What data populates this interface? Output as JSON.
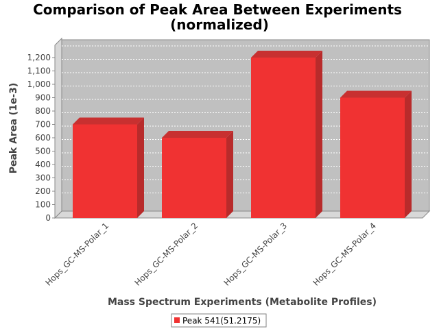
{
  "chart_data": {
    "type": "bar",
    "title": "Comparison of Peak Area Between Experiments",
    "subtitle": "(normalized)",
    "xlabel": "Mass Spectrum Experiments (Metabolite Profiles)",
    "ylabel": "Peak Area (1e-3)",
    "categories": [
      "Hops_GC-MS-Polar_1",
      "Hops_GC-MS-Polar_2",
      "Hops_GC-MS-Polar_3",
      "Hops_GC-MS-Polar_4"
    ],
    "series": [
      {
        "name": "Peak 541(51.2175)",
        "values": [
          700,
          600,
          1200,
          900
        ],
        "color": "#f03232"
      }
    ],
    "ylim": [
      0,
      1200
    ],
    "yticks": [
      0,
      100,
      200,
      300,
      400,
      500,
      600,
      700,
      800,
      900,
      1000,
      1100,
      1200
    ],
    "ytick_labels": [
      "0",
      "100",
      "200",
      "300",
      "400",
      "500",
      "600",
      "700",
      "800",
      "900",
      "1,000",
      "1,100",
      "1,200"
    ],
    "grid": true,
    "three_d": true,
    "legend_position": "bottom",
    "colors": {
      "plot_background": "#c0c0c0",
      "plot_wall": "#d8d8d8",
      "bar_side": "#b82b2b",
      "bar_top": "#c83030",
      "grid": "#ffffff"
    }
  }
}
